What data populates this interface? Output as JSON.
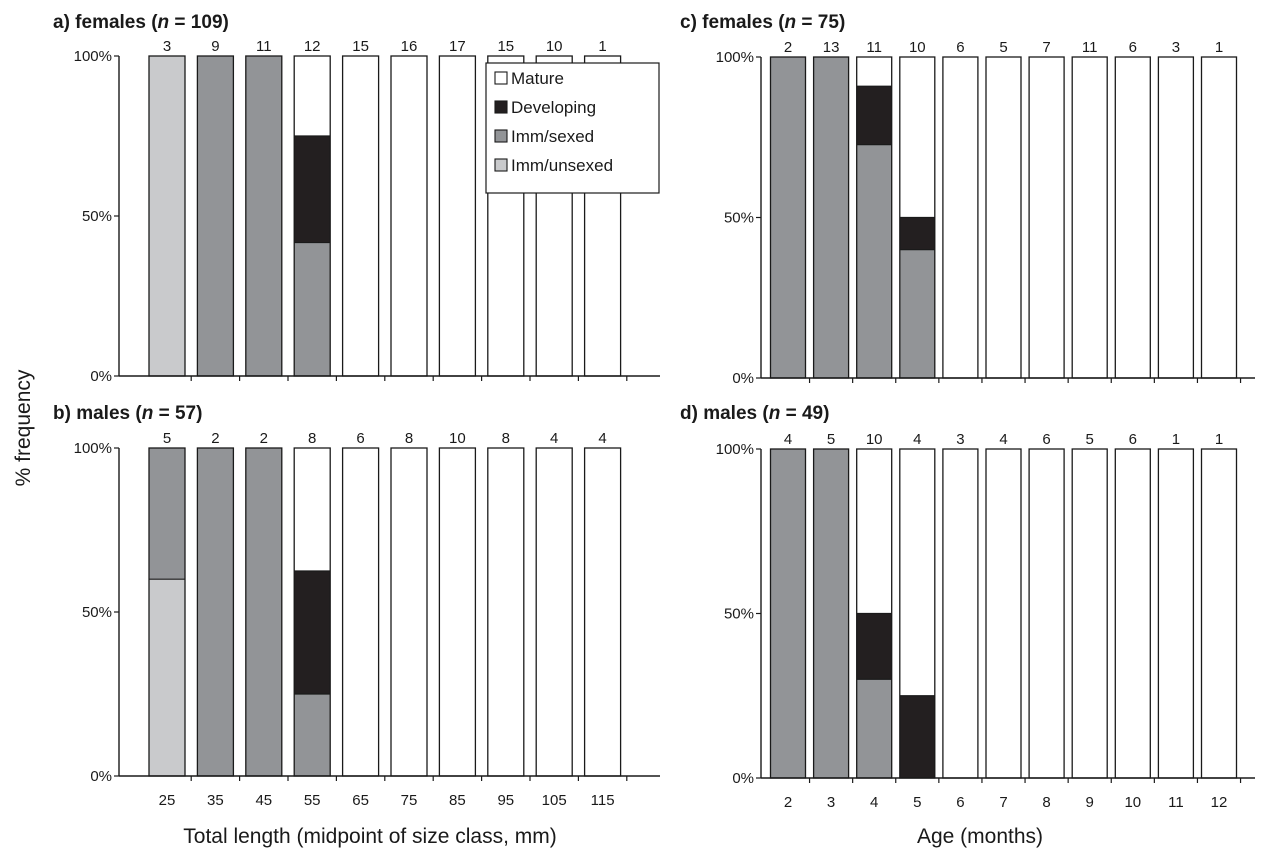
{
  "y_axis_title": "% frequency",
  "x_axis_titles": {
    "left": "Total length (midpoint of size class, mm)",
    "right": "Age (months)"
  },
  "legend": [
    {
      "label": "Mature",
      "color": "#ffffff"
    },
    {
      "label": "Developing",
      "color": "#231f20"
    },
    {
      "label": "Imm/sexed",
      "color": "#929497"
    },
    {
      "label": "Imm/unsexed",
      "color": "#c9cacc"
    }
  ],
  "chart_data": [
    {
      "id": "a",
      "type": "bar",
      "stacked": true,
      "title_prefix": "a) females (",
      "title_n_symbol": "n",
      "title_suffix": " = 109)",
      "ylabel": "% frequency",
      "xlabel": "Total length (midpoint of size class, mm)",
      "ylim": [
        0,
        100
      ],
      "yticks": [
        "0%",
        "50%",
        "100%"
      ],
      "categories": [
        "25",
        "35",
        "45",
        "55",
        "65",
        "75",
        "85",
        "95",
        "105",
        "115"
      ],
      "counts": [
        "3",
        "9",
        "11",
        "12",
        "15",
        "16",
        "17",
        "15",
        "10",
        "1"
      ],
      "series": [
        {
          "name": "Imm/unsexed",
          "values": [
            100,
            0,
            0,
            0,
            0,
            0,
            0,
            0,
            0,
            0
          ]
        },
        {
          "name": "Imm/sexed",
          "values": [
            0,
            100,
            100,
            41.7,
            0,
            0,
            0,
            0,
            0,
            0
          ]
        },
        {
          "name": "Developing",
          "values": [
            0,
            0,
            0,
            33.3,
            0,
            0,
            0,
            0,
            0,
            0
          ]
        },
        {
          "name": "Mature",
          "values": [
            0,
            0,
            0,
            25.0,
            100,
            100,
            100,
            100,
            100,
            100
          ]
        }
      ],
      "legend_position": "top-right"
    },
    {
      "id": "b",
      "type": "bar",
      "stacked": true,
      "title_prefix": "b) males (",
      "title_n_symbol": "n",
      "title_suffix": " = 57)",
      "ylabel": "% frequency",
      "xlabel": "Total length (midpoint of size class, mm)",
      "ylim": [
        0,
        100
      ],
      "yticks": [
        "0%",
        "50%",
        "100%"
      ],
      "categories": [
        "25",
        "35",
        "45",
        "55",
        "65",
        "75",
        "85",
        "95",
        "105",
        "115"
      ],
      "counts": [
        "5",
        "2",
        "2",
        "8",
        "6",
        "8",
        "10",
        "8",
        "4",
        "4"
      ],
      "series": [
        {
          "name": "Imm/unsexed",
          "values": [
            60,
            0,
            0,
            0,
            0,
            0,
            0,
            0,
            0,
            0
          ]
        },
        {
          "name": "Imm/sexed",
          "values": [
            40,
            100,
            100,
            25.0,
            0,
            0,
            0,
            0,
            0,
            0
          ]
        },
        {
          "name": "Developing",
          "values": [
            0,
            0,
            0,
            37.5,
            0,
            0,
            0,
            0,
            0,
            0
          ]
        },
        {
          "name": "Mature",
          "values": [
            0,
            0,
            0,
            37.5,
            100,
            100,
            100,
            100,
            100,
            100
          ]
        }
      ]
    },
    {
      "id": "c",
      "type": "bar",
      "stacked": true,
      "title_prefix": "c) females (",
      "title_n_symbol": "n",
      "title_suffix": " = 75)",
      "ylabel": "% frequency",
      "xlabel": "Age (months)",
      "ylim": [
        0,
        100
      ],
      "yticks": [
        "0%",
        "50%",
        "100%"
      ],
      "categories": [
        "2",
        "3",
        "4",
        "5",
        "6",
        "7",
        "8",
        "9",
        "10",
        "11",
        "12"
      ],
      "counts": [
        "2",
        "13",
        "11",
        "10",
        "6",
        "5",
        "7",
        "11",
        "6",
        "3",
        "1"
      ],
      "series": [
        {
          "name": "Imm/unsexed",
          "values": [
            0,
            0,
            0,
            0,
            0,
            0,
            0,
            0,
            0,
            0,
            0
          ]
        },
        {
          "name": "Imm/sexed",
          "values": [
            100,
            100,
            72.7,
            40,
            0,
            0,
            0,
            0,
            0,
            0,
            0
          ]
        },
        {
          "name": "Developing",
          "values": [
            0,
            0,
            18.2,
            10,
            0,
            0,
            0,
            0,
            0,
            0,
            0
          ]
        },
        {
          "name": "Mature",
          "values": [
            0,
            0,
            9.1,
            50,
            100,
            100,
            100,
            100,
            100,
            100,
            100
          ]
        }
      ]
    },
    {
      "id": "d",
      "type": "bar",
      "stacked": true,
      "title_prefix": "d) males (",
      "title_n_symbol": "n",
      "title_suffix": " = 49)",
      "ylabel": "% frequency",
      "xlabel": "Age (months)",
      "ylim": [
        0,
        100
      ],
      "yticks": [
        "0%",
        "50%",
        "100%"
      ],
      "categories": [
        "2",
        "3",
        "4",
        "5",
        "6",
        "7",
        "8",
        "9",
        "10",
        "11",
        "12"
      ],
      "counts": [
        "4",
        "5",
        "10",
        "4",
        "3",
        "4",
        "6",
        "5",
        "6",
        "1",
        "1"
      ],
      "series": [
        {
          "name": "Imm/unsexed",
          "values": [
            0,
            0,
            0,
            0,
            0,
            0,
            0,
            0,
            0,
            0,
            0
          ]
        },
        {
          "name": "Imm/sexed",
          "values": [
            100,
            100,
            30,
            0,
            0,
            0,
            0,
            0,
            0,
            0,
            0
          ]
        },
        {
          "name": "Developing",
          "values": [
            0,
            0,
            20,
            25,
            0,
            0,
            0,
            0,
            0,
            0,
            0
          ]
        },
        {
          "name": "Mature",
          "values": [
            0,
            0,
            50,
            75,
            100,
            100,
            100,
            100,
            100,
            100,
            100
          ]
        }
      ]
    }
  ]
}
